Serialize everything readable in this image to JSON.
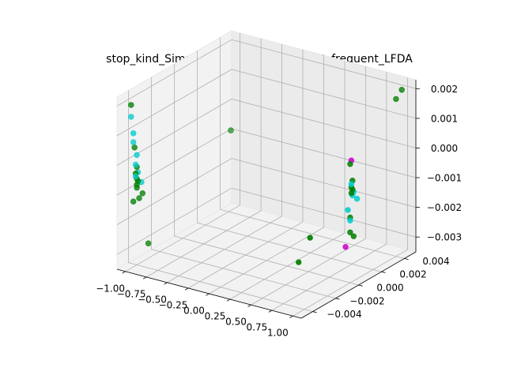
{
  "chart_data": {
    "type": "scatter",
    "projection": "3d",
    "title": "stop_kind_SimpleImputer_listwise_most_frequent_LFDA",
    "xlabel": "",
    "ylabel": "",
    "zlabel": "",
    "grid": true,
    "xlim": [
      -1.1,
      1.1
    ],
    "ylim": [
      -0.005,
      0.005
    ],
    "zlim": [
      -0.0035,
      0.0023
    ],
    "x_ticks": [
      -1.0,
      -0.75,
      -0.5,
      -0.25,
      0.0,
      0.25,
      0.5,
      0.75,
      1.0
    ],
    "x_tick_labels": [
      "−1.00",
      "−0.75",
      "−0.50",
      "−0.25",
      "0.00",
      "0.25",
      "0.50",
      "0.75",
      "1.00"
    ],
    "y_ticks": [
      -0.004,
      -0.002,
      0.0,
      0.002,
      0.004
    ],
    "y_tick_labels": [
      "−0.004",
      "−0.002",
      "0.000",
      "0.002",
      "0.004"
    ],
    "z_ticks": [
      -0.003,
      -0.002,
      -0.001,
      0.0,
      0.001,
      0.002
    ],
    "z_tick_labels": [
      "−0.003",
      "−0.002",
      "−0.001",
      "0.000",
      "0.001",
      "0.002"
    ],
    "series": [
      {
        "color": "#008000",
        "points": [
          [
            -1.0,
            -0.0045,
            0.002
          ],
          [
            -1.0,
            -0.0042,
            0.0005
          ],
          [
            -1.0,
            -0.004,
            -0.0002
          ],
          [
            -1.0,
            -0.0041,
            -0.0004
          ],
          [
            -1.0,
            -0.004,
            -0.0006
          ],
          [
            -1.0,
            -0.0039,
            -0.0007
          ],
          [
            -1.0,
            -0.004,
            -0.0008
          ],
          [
            -1.0,
            -0.004,
            -0.0009
          ],
          [
            -1.0,
            -0.0035,
            -0.0012
          ],
          [
            -1.0,
            -0.0043,
            -0.0013
          ],
          [
            -1.0,
            -0.0038,
            -0.0013
          ],
          [
            -1.0,
            -0.003,
            -0.003
          ],
          [
            -1.0,
            0.0042,
            -0.0008
          ],
          [
            1.0,
            0.0045,
            0.002
          ],
          [
            1.0,
            0.004,
            0.0018
          ],
          [
            1.0,
            0.0,
            0.0005
          ],
          [
            1.0,
            0.0002,
            -0.0001
          ],
          [
            1.0,
            0.0001,
            -0.0003
          ],
          [
            1.0,
            0.0002,
            -0.0004
          ],
          [
            1.0,
            0.0001,
            -0.0005
          ],
          [
            1.0,
            0.0,
            -0.0013
          ],
          [
            1.0,
            0.0,
            -0.0018
          ],
          [
            1.0,
            0.0003,
            -0.002
          ],
          [
            1.0,
            -0.0035,
            -0.0012
          ],
          [
            1.0,
            -0.0045,
            -0.0018
          ]
        ]
      },
      {
        "color": "#00cccc",
        "points": [
          [
            -1.0,
            -0.0045,
            0.0016
          ],
          [
            -1.0,
            -0.0043,
            0.001
          ],
          [
            -1.0,
            -0.0043,
            0.0007
          ],
          [
            -1.0,
            -0.004,
            0.0002
          ],
          [
            -1.0,
            -0.0041,
            -0.0001
          ],
          [
            -1.0,
            -0.0039,
            -0.0004
          ],
          [
            -1.0,
            -0.0041,
            -0.0005
          ],
          [
            -1.0,
            -0.0036,
            -0.0008
          ],
          [
            1.0,
            0.0001,
            -0.0002
          ],
          [
            1.0,
            0.0003,
            -0.0005
          ],
          [
            1.0,
            0.0002,
            -0.0006
          ],
          [
            1.0,
            -0.0002,
            -0.001
          ],
          [
            1.0,
            0.0006,
            -0.0008
          ],
          [
            1.0,
            0.0,
            -0.0014
          ]
        ]
      },
      {
        "color": "#cc00cc",
        "points": [
          [
            1.0,
            0.0001,
            0.0006
          ],
          [
            1.0,
            -0.0004,
            -0.0022
          ]
        ]
      }
    ]
  }
}
